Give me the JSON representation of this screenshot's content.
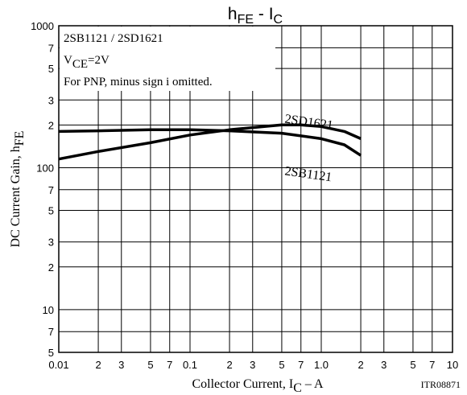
{
  "chart_data": {
    "type": "line",
    "title": {
      "main": "h",
      "main_sub": "FE",
      "sep": " - ",
      "var": "I",
      "var_sub": "C"
    },
    "x_label": {
      "text": "Collector Current, I",
      "sub": "C",
      "unit": " – A"
    },
    "y_label": {
      "text": "DC Current Gain, h",
      "sub": "FE"
    },
    "annotations": {
      "parts": "2SB1121 / 2SD1621",
      "vce": "V",
      "vce_sub": "CE",
      "vce_value": "=2V",
      "note": "For PNP, minus sign i omitted.",
      "code": "ITR08871"
    },
    "log_x": true,
    "log_y": true,
    "grid": true,
    "color": "#000000",
    "xlim": [
      0.01,
      10
    ],
    "xticks": [
      0.01,
      {
        "value": 0.02,
        "label": "2"
      },
      {
        "value": 0.03,
        "label": "3"
      },
      {
        "value": 0.05,
        "label": "5"
      },
      {
        "value": 0.07,
        "label": "7"
      },
      0.1,
      {
        "value": 0.2,
        "label": "2"
      },
      {
        "value": 0.3,
        "label": "3"
      },
      {
        "value": 0.5,
        "label": "5"
      },
      {
        "value": 0.7,
        "label": "7"
      },
      {
        "value": 1,
        "label": "1.0"
      },
      {
        "value": 2,
        "label": "2"
      },
      {
        "value": 3,
        "label": "3"
      },
      {
        "value": 5,
        "label": "5"
      },
      {
        "value": 7,
        "label": "7"
      },
      10
    ],
    "ylim": [
      5,
      1000
    ],
    "yticks": [
      1000,
      {
        "value": 700,
        "label": "7"
      },
      {
        "value": 500,
        "label": "5"
      },
      {
        "value": 300,
        "label": "3"
      },
      {
        "value": 200,
        "label": "2"
      },
      100,
      {
        "value": 70,
        "label": "7"
      },
      {
        "value": 50,
        "label": "5"
      },
      {
        "value": 30,
        "label": "3"
      },
      {
        "value": 20,
        "label": "2"
      },
      10,
      7,
      5
    ],
    "series": [
      {
        "name": "2SD1621",
        "color": "#000000",
        "x": [
          0.01,
          0.02,
          0.05,
          0.1,
          0.2,
          0.5,
          0.7,
          1,
          1.5,
          2
        ],
        "values": [
          115,
          130,
          150,
          170,
          185,
          200,
          200,
          195,
          180,
          160
        ]
      },
      {
        "name": "2SB1121",
        "color": "#000000",
        "x": [
          0.01,
          0.02,
          0.05,
          0.1,
          0.2,
          0.5,
          1,
          1.5,
          2
        ],
        "values": [
          180,
          182,
          185,
          185,
          182,
          175,
          160,
          145,
          122
        ]
      }
    ]
  }
}
